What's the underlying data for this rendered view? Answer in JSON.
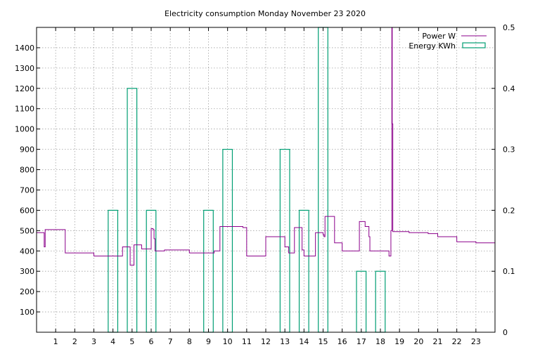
{
  "chart_data": {
    "type": "line",
    "title": "Electricity consumption Monday November 23 2020",
    "xlim": [
      0,
      24
    ],
    "ylim": [
      0,
      1500
    ],
    "y2lim": [
      0,
      0.5
    ],
    "x_ticks": [
      1,
      2,
      3,
      4,
      5,
      6,
      7,
      8,
      9,
      10,
      11,
      12,
      13,
      14,
      15,
      16,
      17,
      18,
      19,
      20,
      21,
      22,
      23
    ],
    "y_ticks": [
      100,
      200,
      300,
      400,
      500,
      600,
      700,
      800,
      900,
      1000,
      1100,
      1200,
      1300,
      1400
    ],
    "y2_ticks": [
      "0",
      "0.1",
      "0.2",
      "0.3",
      "0.4",
      "0.5"
    ],
    "grid": true,
    "legend_position": "top-right",
    "series": [
      {
        "name": "Power W",
        "type": "step-line",
        "color": "#8b008b",
        "x": [
          0,
          0.4,
          0.45,
          1.4,
          1.5,
          2.8,
          3.0,
          4.3,
          4.5,
          4.8,
          4.9,
          5.1,
          5.5,
          5.9,
          6.0,
          6.1,
          6.15,
          6.2,
          6.3,
          6.7,
          7.0,
          8.0,
          8.3,
          9.0,
          9.3,
          9.6,
          10.3,
          10.8,
          11.0,
          11.5,
          12.0,
          12.6,
          13.0,
          13.1,
          13.2,
          13.5,
          13.8,
          13.9,
          14.0,
          14.5,
          14.6,
          15.0,
          15.05,
          15.1,
          15.5,
          15.6,
          16.0,
          16.5,
          16.9,
          17.2,
          17.4,
          17.45,
          17.6,
          18.3,
          18.45,
          18.5,
          18.55,
          18.6,
          18.62,
          18.65,
          19.0,
          19.5,
          20.0,
          20.5,
          21.0,
          21.5,
          22.0,
          22.5,
          23.0,
          23.5,
          24.0
        ],
        "values": [
          490,
          420,
          505,
          505,
          390,
          390,
          375,
          375,
          420,
          420,
          330,
          430,
          410,
          410,
          510,
          505,
          460,
          400,
          400,
          405,
          405,
          390,
          390,
          390,
          400,
          520,
          520,
          515,
          375,
          375,
          470,
          470,
          420,
          420,
          390,
          515,
          515,
          405,
          375,
          375,
          490,
          480,
          470,
          570,
          570,
          440,
          400,
          400,
          545,
          520,
          470,
          400,
          400,
          400,
          375,
          375,
          500,
          1500,
          1025,
          495,
          495,
          490,
          490,
          485,
          470,
          470,
          445,
          445,
          440,
          440,
          400
        ]
      },
      {
        "name": "Energy KWh",
        "type": "bar",
        "color": "#009e73",
        "x": [
          4,
          5,
          6,
          9,
          10,
          13,
          14,
          15,
          17,
          18
        ],
        "values": [
          0.2,
          0.4,
          0.2,
          0.2,
          0.3,
          0.3,
          0.2,
          0.5,
          0.1,
          0.1
        ]
      }
    ]
  }
}
